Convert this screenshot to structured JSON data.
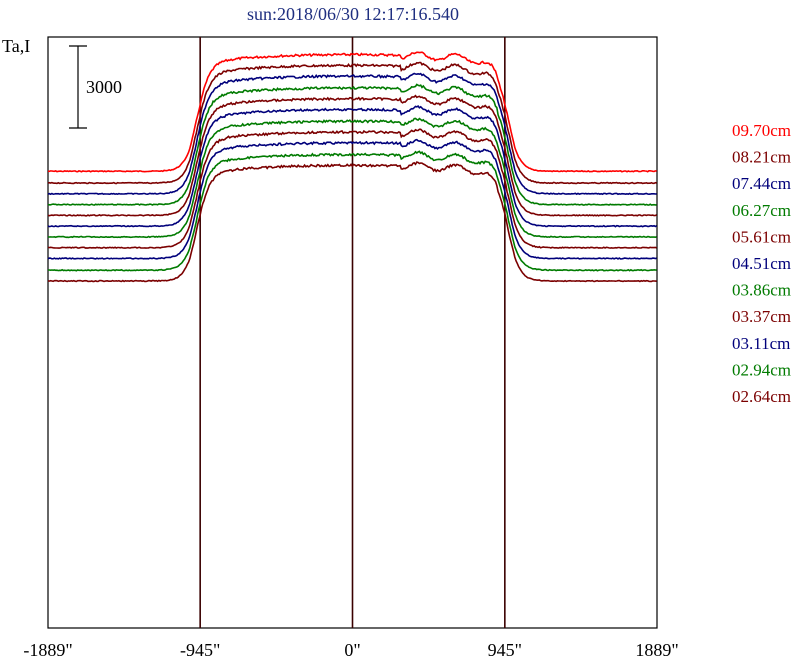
{
  "chart_data": {
    "type": "line",
    "title": "sun:2018/06/30 12:17:16.540",
    "ylabel": "Ta,I",
    "scale_bar_label": "3000",
    "x_ticks": [
      {
        "value": -1889,
        "label": "-1889\""
      },
      {
        "value": -945,
        "label": "-945\""
      },
      {
        "value": 0,
        "label": "0\""
      },
      {
        "value": 945,
        "label": "945\""
      },
      {
        "value": 1889,
        "label": "1889\""
      }
    ],
    "xlim": [
      -1889,
      1889
    ],
    "vertical_lines": [
      -945,
      0,
      945
    ],
    "legend_position": "right",
    "series": [
      {
        "name": "09.70cm",
        "color": "#ff0000",
        "baseline_frac": 0.685,
        "plateau_frac": 0.09
      },
      {
        "name": "08.21cm",
        "color": "#7b0000",
        "baseline_frac": 0.745,
        "plateau_frac": 0.145
      },
      {
        "name": "07.44cm",
        "color": "#00007b",
        "baseline_frac": 0.8,
        "plateau_frac": 0.2
      },
      {
        "name": "06.27cm",
        "color": "#007b00",
        "baseline_frac": 0.855,
        "plateau_frac": 0.26
      },
      {
        "name": "05.61cm",
        "color": "#7b0000",
        "baseline_frac": 0.91,
        "plateau_frac": 0.315
      },
      {
        "name": "04.51cm",
        "color": "#00007b",
        "baseline_frac": 0.965,
        "plateau_frac": 0.37
      },
      {
        "name": "03.86cm",
        "color": "#007b00",
        "baseline_frac": 1.02,
        "plateau_frac": 0.43
      },
      {
        "name": "03.37cm",
        "color": "#7b0000",
        "baseline_frac": 1.075,
        "plateau_frac": 0.485
      },
      {
        "name": "03.11cm",
        "color": "#00007b",
        "baseline_frac": 1.13,
        "plateau_frac": 0.54
      },
      {
        "name": "02.94cm",
        "color": "#007b00",
        "baseline_frac": 1.19,
        "plateau_frac": 0.6
      },
      {
        "name": "02.64cm",
        "color": "#7b0000",
        "baseline_frac": 1.245,
        "plateau_frac": 0.655
      }
    ]
  }
}
